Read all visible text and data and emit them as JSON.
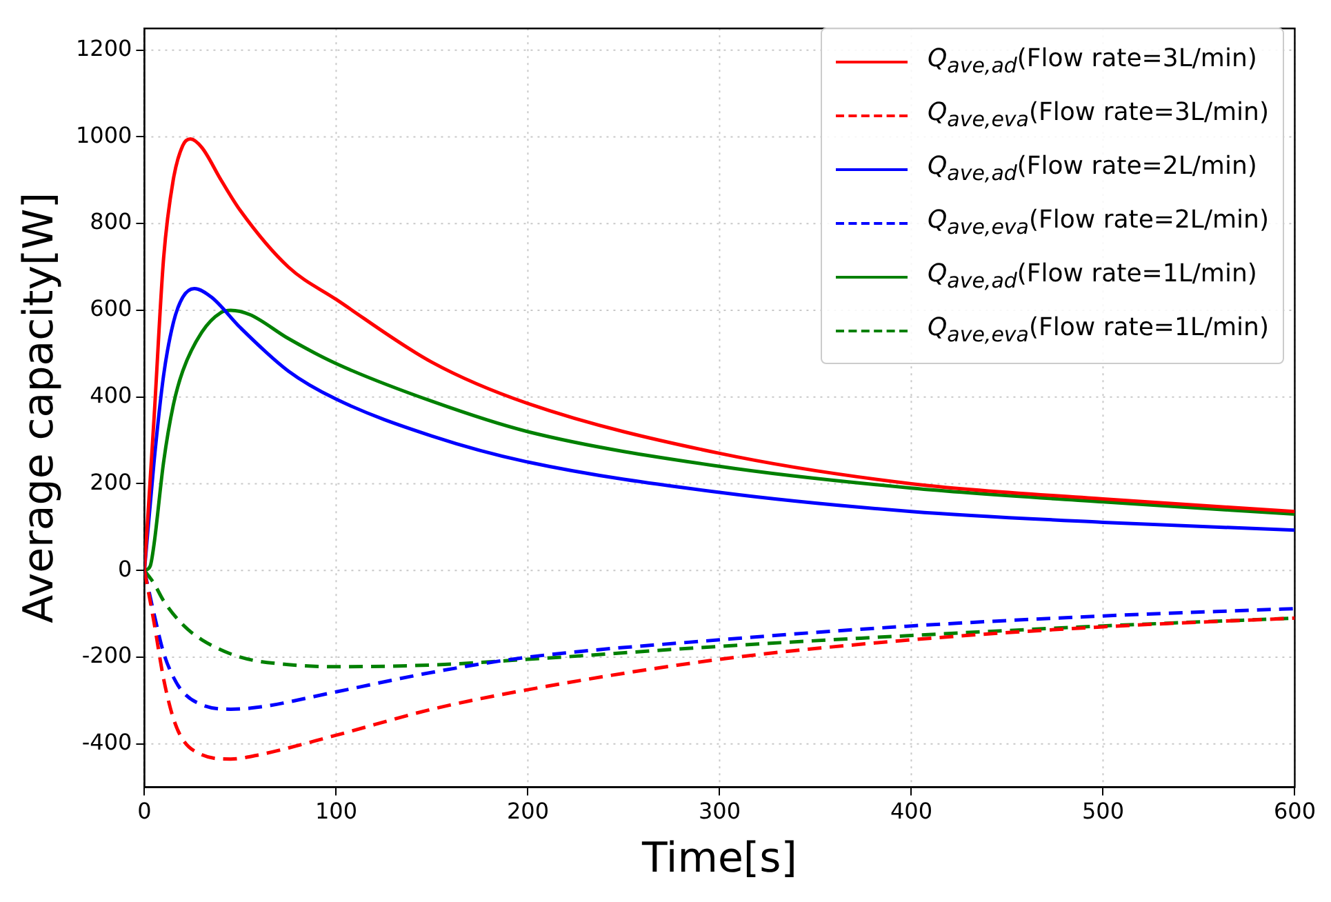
{
  "chart_data": {
    "type": "line",
    "xlabel": "Time[s]",
    "ylabel": "Average capacity[W]",
    "xlim": [
      0,
      600
    ],
    "xticks": [
      0,
      100,
      200,
      300,
      400,
      500,
      600
    ],
    "ylim": [
      -500,
      1250
    ],
    "yticks": [
      -400,
      -200,
      0,
      200,
      400,
      600,
      800,
      1000,
      1200
    ],
    "grid": true,
    "legend": "top right",
    "series": [
      {
        "name": "Q$_{ave,ad}$(Flow rate=3L/min)",
        "color": "#ff0000",
        "line_style": "solid",
        "x": [
          0,
          5,
          10,
          15,
          20,
          24,
          30,
          40,
          50,
          75,
          100,
          150,
          200,
          300,
          400,
          500,
          600
        ],
        "values": [
          0,
          350,
          720,
          900,
          980,
          995,
          975,
          900,
          830,
          700,
          625,
          480,
          385,
          270,
          200,
          165,
          136
        ]
      },
      {
        "name": "Q$_{ave,eva}$(Flow rate=3L/min)",
        "color": "#ff0000",
        "line_style": "dashed",
        "x": [
          0,
          5,
          10,
          15,
          20,
          30,
          45,
          60,
          100,
          150,
          200,
          300,
          400,
          500,
          600
        ],
        "values": [
          0,
          -120,
          -250,
          -340,
          -390,
          -425,
          -435,
          -425,
          -380,
          -320,
          -275,
          -205,
          -160,
          -130,
          -110
        ]
      },
      {
        "name": "Q$_{ave,ad}$(Flow rate=2L/min)",
        "color": "#0000ff",
        "line_style": "solid",
        "x": [
          0,
          5,
          10,
          15,
          20,
          26,
          35,
          50,
          75,
          100,
          150,
          200,
          300,
          400,
          500,
          600
        ],
        "values": [
          0,
          250,
          450,
          570,
          630,
          650,
          630,
          560,
          460,
          395,
          310,
          250,
          180,
          136,
          111,
          93
        ]
      },
      {
        "name": "Q$_{ave,eva}$(Flow rate=2L/min)",
        "color": "#0000ff",
        "line_style": "dashed",
        "x": [
          0,
          5,
          10,
          15,
          20,
          30,
          45,
          60,
          100,
          150,
          200,
          300,
          400,
          500,
          600
        ],
        "values": [
          0,
          -100,
          -190,
          -245,
          -280,
          -310,
          -320,
          -315,
          -280,
          -235,
          -200,
          -160,
          -128,
          -105,
          -88
        ]
      },
      {
        "name": "Q$_{ave,ad}$(Flow rate=1L/min)",
        "color": "#008000",
        "line_style": "solid",
        "x": [
          0,
          3,
          5,
          10,
          15,
          20,
          30,
          40,
          45,
          55,
          75,
          100,
          150,
          200,
          300,
          400,
          500,
          600
        ],
        "values": [
          0,
          10,
          60,
          250,
          380,
          460,
          550,
          595,
          600,
          590,
          535,
          477,
          390,
          320,
          240,
          190,
          158,
          130
        ]
      },
      {
        "name": "Q$_{ave,eva}$(Flow rate=1L/min)",
        "color": "#008000",
        "line_style": "dashed",
        "x": [
          0,
          5,
          10,
          20,
          30,
          50,
          75,
          100,
          150,
          200,
          300,
          400,
          500,
          600
        ],
        "values": [
          0,
          -30,
          -70,
          -125,
          -160,
          -200,
          -217,
          -222,
          -218,
          -205,
          -175,
          -150,
          -128,
          -110
        ]
      }
    ]
  }
}
